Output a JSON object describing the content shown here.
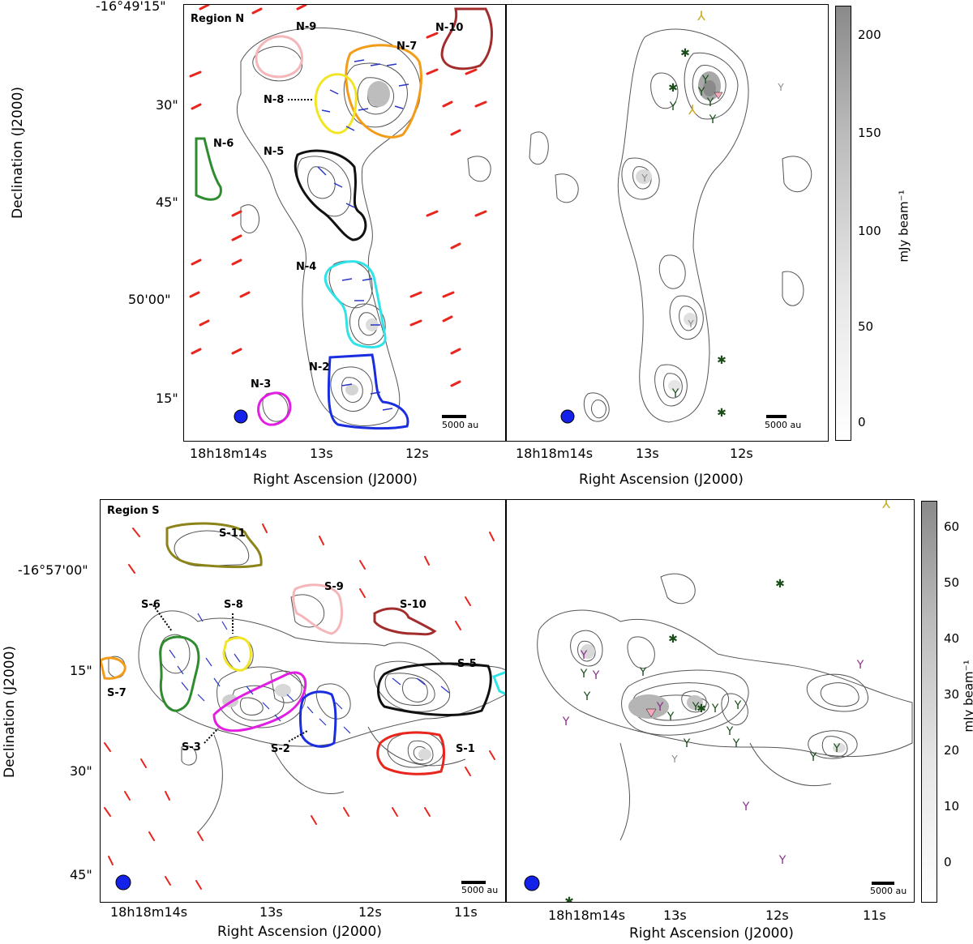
{
  "figure": {
    "region_n": {
      "title": "Region N",
      "dec_ticks": [
        "-16°49'15\"",
        "30\"",
        "45\"",
        "50'00\"",
        "15\""
      ],
      "ra_ticks": [
        "18h18m14s",
        "13s",
        "12s"
      ],
      "ra_ticks_right": [
        "18h18m14s",
        "13s",
        "12s"
      ],
      "labels": [
        "N-9",
        "N-7",
        "N-10",
        "N-8",
        "N-6",
        "N-5",
        "N-4",
        "N-2",
        "N-3"
      ],
      "colorbar_ticks": [
        "200",
        "150",
        "100",
        "50",
        "0"
      ],
      "colorbar_label": "mJy beam⁻¹",
      "scale": "5000 au"
    },
    "region_s": {
      "title": "Region S",
      "dec_ticks": [
        "-16°57'00\"",
        "15\"",
        "30\"",
        "45\""
      ],
      "ra_ticks": [
        "18h18m14s",
        "13s",
        "12s",
        "11s"
      ],
      "labels": [
        "S-11",
        "S-9",
        "S-10",
        "S-6",
        "S-8",
        "S-7",
        "S-5",
        "S-3",
        "S-2",
        "S-1"
      ],
      "colorbar_ticks": [
        "60",
        "50",
        "40",
        "30",
        "20",
        "10",
        "0"
      ],
      "colorbar_label": "mJy beam⁻¹",
      "scale": "5000 au"
    },
    "axis_labels": {
      "x": "Right Ascension (J2000)",
      "y": "Declination (J2000)"
    },
    "colors": {
      "vectors_red": "#e8261e",
      "vectors_blue": "#2a35c9",
      "beam": "#1421e8"
    }
  }
}
